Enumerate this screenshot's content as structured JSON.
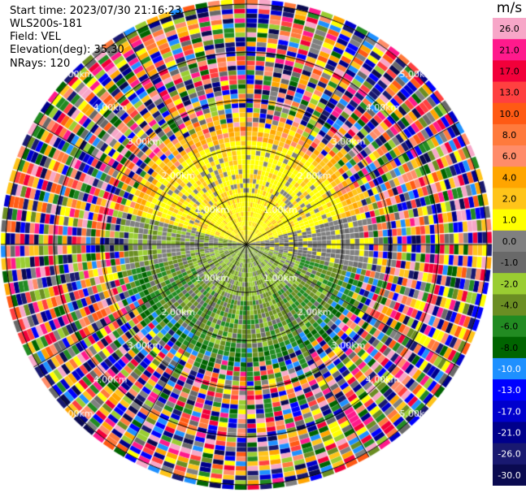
{
  "info": {
    "start_time": "Start time: 2023/07/30 21:16:23",
    "instrument": "WLS200s-181",
    "field": "Field: VEL",
    "elevation": "Elevation(deg): 35.30",
    "nrays": "NRays: 120"
  },
  "range_labels": {
    "r1": "1.00km",
    "r2": "2.00km",
    "r3": "3.00km",
    "r4": "4.00km",
    "r5": "5.00km"
  },
  "colorbar": {
    "unit": "m/s",
    "ticks": [
      "26.0",
      "21.0",
      "17.0",
      "13.0",
      "10.0",
      "8.0",
      "6.0",
      "4.0",
      "2.0",
      "1.0",
      "0.0",
      "-1.0",
      "-2.0",
      "-4.0",
      "-6.0",
      "-8.0",
      "-10.0",
      "-13.0",
      "-17.0",
      "-21.0",
      "-26.0",
      "-30.0"
    ],
    "colors": [
      "#f7a7c8",
      "#ff1a8c",
      "#f2003a",
      "#ff4040",
      "#ff5a14",
      "#ff7a3c",
      "#ff8c69",
      "#ffa500",
      "#ffc41a",
      "#ffff00",
      "#808080",
      "#696969",
      "#9acd32",
      "#6b8e23",
      "#228b22",
      "#006400",
      "#1e90ff",
      "#0000ff",
      "#0000cd",
      "#00008b",
      "#191970",
      "#0a0a50"
    ]
  },
  "chart_data": {
    "type": "heatmap",
    "title": "",
    "field": "VEL",
    "units": "m/s",
    "elevation_deg": 35.3,
    "n_rays": 120,
    "range_rings_km": [
      1,
      2,
      3,
      4,
      5
    ],
    "range_extent_km": 5.1,
    "value_range": [
      -30,
      26
    ]
  }
}
